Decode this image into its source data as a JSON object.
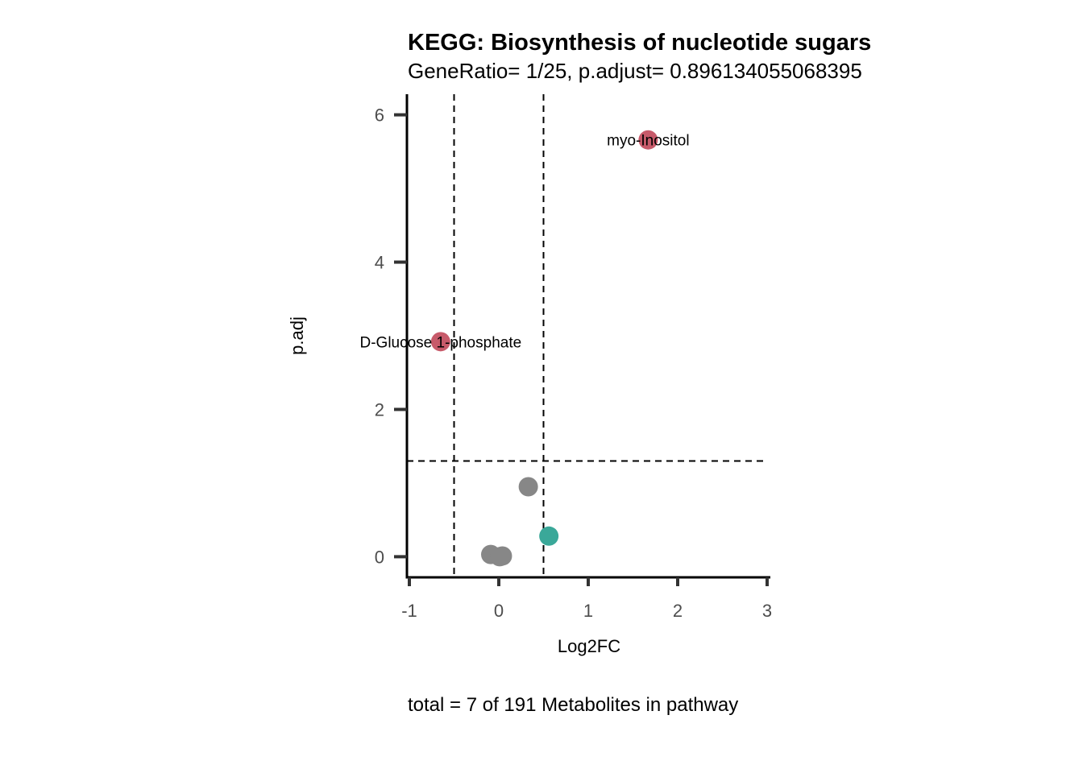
{
  "chart_data": {
    "type": "scatter",
    "title": "KEGG: Biosynthesis of nucleotide sugars",
    "subtitle": "GeneRatio= 1/25, p.adjust= 0.896134055068395",
    "xlabel": "Log2FC",
    "ylabel": "p.adj",
    "caption": "total = 7 of 191 Metabolites in pathway",
    "xlim": [
      -1,
      3
    ],
    "ylim": [
      -0.28,
      6.28
    ],
    "x_ticks": [
      "-1",
      "0",
      "1",
      "2",
      "3"
    ],
    "x_tick_values": [
      -1,
      0,
      1,
      2,
      3
    ],
    "y_ticks": [
      "0",
      "2",
      "4",
      "6"
    ],
    "y_tick_values": [
      0,
      2,
      4,
      6
    ],
    "thresholds": {
      "vlines": [
        -0.5,
        0.5
      ],
      "hline": 1.3
    },
    "colors": {
      "up": "#c75a6a",
      "down": "#3aa899",
      "ns": "#878787"
    },
    "points": [
      {
        "x": 1.67,
        "y": 5.66,
        "group": "up",
        "label": "myo-Inositol"
      },
      {
        "x": -0.65,
        "y": 2.92,
        "group": "up",
        "label": "D-Glucose 1-phosphate"
      },
      {
        "x": 0.33,
        "y": 0.95,
        "group": "ns",
        "label": ""
      },
      {
        "x": 0.56,
        "y": 0.28,
        "group": "down",
        "label": ""
      },
      {
        "x": -0.09,
        "y": 0.03,
        "group": "ns",
        "label": ""
      },
      {
        "x": 0.04,
        "y": 0.01,
        "group": "ns",
        "label": ""
      },
      {
        "x": 0.01,
        "y": 0.0,
        "group": "ns",
        "label": ""
      }
    ],
    "grid": false,
    "legend": "none"
  }
}
